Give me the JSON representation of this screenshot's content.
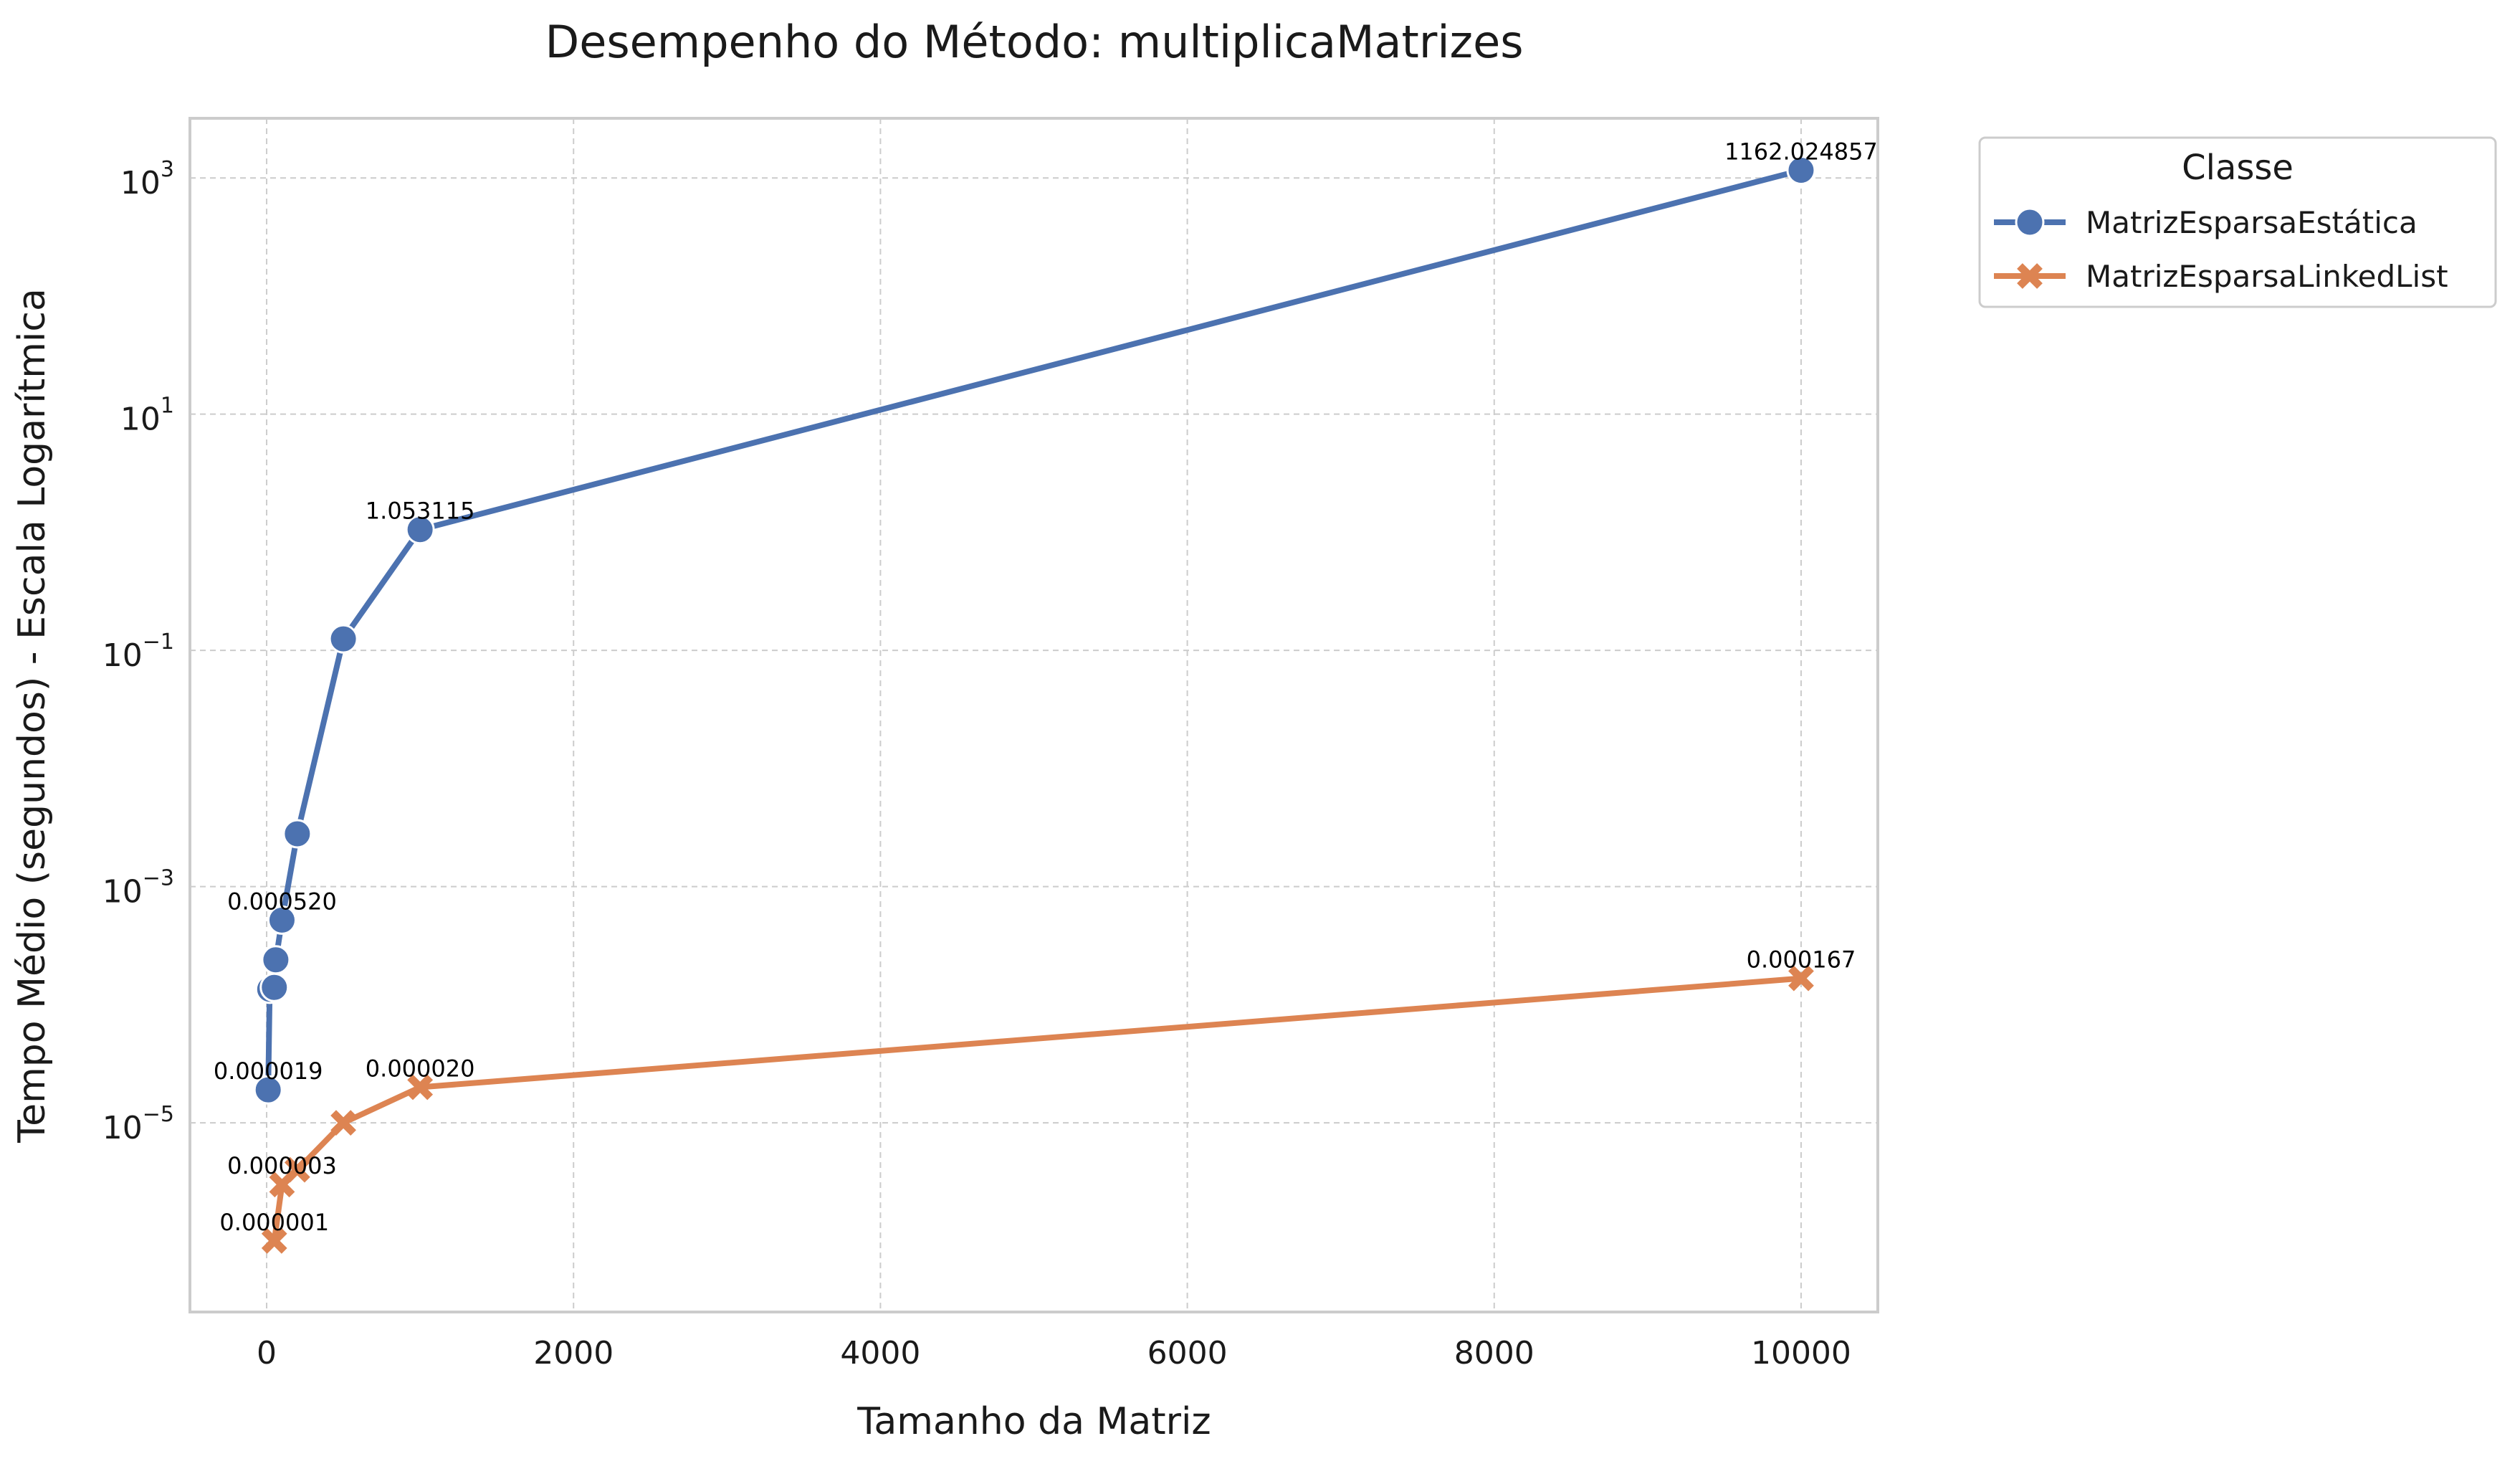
{
  "chart_data": {
    "type": "line",
    "title": "Desempenho do Método: multiplicaMatrizes",
    "xlabel": "Tamanho da Matriz",
    "ylabel": "Tempo Médio (segundos) - Escala Logarítmica",
    "xlim": [
      -500,
      10500
    ],
    "ylim": [
      2.5e-07,
      3200
    ],
    "yscale": "log",
    "grid": true,
    "x_ticks": [
      0,
      2000,
      4000,
      6000,
      8000,
      10000
    ],
    "y_ticks": [
      {
        "base": "10",
        "exp": "3",
        "value": 1000
      },
      {
        "base": "10",
        "exp": "1",
        "value": 10
      },
      {
        "base": "10",
        "exp": "−1",
        "value": 0.1
      },
      {
        "base": "10",
        "exp": "−3",
        "value": 0.001
      },
      {
        "base": "10",
        "exp": "−5",
        "value": 1e-05
      }
    ],
    "legend": {
      "title": "Classe",
      "position": "outside-top-right"
    },
    "series": [
      {
        "name": "MatrizEsparsaEstática",
        "color": "#4C72B0",
        "marker": "circle",
        "points": [
          {
            "x": 10,
            "y": 1.9e-05
          },
          {
            "x": 20,
            "y": 0.000135
          },
          {
            "x": 50,
            "y": 0.00014
          },
          {
            "x": 60,
            "y": 0.00024
          },
          {
            "x": 100,
            "y": 0.00052
          },
          {
            "x": 200,
            "y": 0.0028
          },
          {
            "x": 500,
            "y": 0.125
          },
          {
            "x": 1000,
            "y": 1.053115
          },
          {
            "x": 10000,
            "y": 1162.024857
          }
        ],
        "labels": [
          {
            "index": 0,
            "text": "0.000019"
          },
          {
            "index": 4,
            "text": "0.000520"
          },
          {
            "index": 7,
            "text": "1.053115"
          },
          {
            "index": 8,
            "text": "1162.024857"
          }
        ]
      },
      {
        "name": "MatrizEsparsaLinkedList",
        "color": "#DD8452",
        "marker": "x",
        "points": [
          {
            "x": 50,
            "y": 1e-06
          },
          {
            "x": 100,
            "y": 3e-06
          },
          {
            "x": 200,
            "y": 4e-06
          },
          {
            "x": 500,
            "y": 1e-05
          },
          {
            "x": 1000,
            "y": 2e-05
          },
          {
            "x": 10000,
            "y": 0.000167
          }
        ],
        "labels": [
          {
            "index": 0,
            "text": "0.000001"
          },
          {
            "index": 1,
            "text": "0.000003"
          },
          {
            "index": 4,
            "text": "0.000020"
          },
          {
            "index": 5,
            "text": "0.000167"
          }
        ]
      }
    ]
  }
}
